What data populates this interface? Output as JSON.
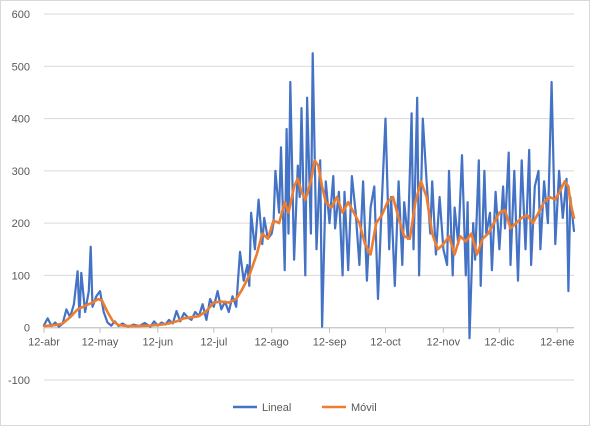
{
  "chart_data": {
    "type": "line",
    "title": "",
    "xlabel": "",
    "ylabel": "",
    "ylim": [
      -100,
      600
    ],
    "yticks": [
      -100,
      0,
      100,
      200,
      300,
      400,
      500,
      600
    ],
    "x_range": [
      "2020-04-12",
      "2021-01-21"
    ],
    "x_ticks": [
      {
        "date": "2020-04-12",
        "label": "12-abr"
      },
      {
        "date": "2020-05-12",
        "label": "12-may"
      },
      {
        "date": "2020-06-12",
        "label": "12-jun"
      },
      {
        "date": "2020-07-12",
        "label": "12-jul"
      },
      {
        "date": "2020-08-12",
        "label": "12-ago"
      },
      {
        "date": "2020-09-12",
        "label": "12-sep"
      },
      {
        "date": "2020-10-12",
        "label": "12-oct"
      },
      {
        "date": "2020-11-12",
        "label": "12-nov"
      },
      {
        "date": "2020-12-12",
        "label": "12-dic"
      },
      {
        "date": "2021-01-12",
        "label": "12-ene"
      }
    ],
    "grid": true,
    "legend_position": "bottom",
    "colors": {
      "Lineal": "#4472c4",
      "Móvil": "#ed7d31",
      "grid": "#d9d9d9",
      "text": "#595959"
    },
    "series": [
      {
        "name": "Lineal",
        "color": "#4472c4",
        "points": [
          [
            "2020-04-12",
            5
          ],
          [
            "2020-04-14",
            18
          ],
          [
            "2020-04-16",
            3
          ],
          [
            "2020-04-18",
            10
          ],
          [
            "2020-04-20",
            2
          ],
          [
            "2020-04-22",
            8
          ],
          [
            "2020-04-24",
            35
          ],
          [
            "2020-04-26",
            20
          ],
          [
            "2020-04-28",
            45
          ],
          [
            "2020-04-30",
            108
          ],
          [
            "2020-05-01",
            20
          ],
          [
            "2020-05-02",
            105
          ],
          [
            "2020-05-04",
            30
          ],
          [
            "2020-05-06",
            70
          ],
          [
            "2020-05-07",
            155
          ],
          [
            "2020-05-08",
            40
          ],
          [
            "2020-05-10",
            60
          ],
          [
            "2020-05-12",
            70
          ],
          [
            "2020-05-14",
            30
          ],
          [
            "2020-05-16",
            10
          ],
          [
            "2020-05-18",
            4
          ],
          [
            "2020-05-20",
            12
          ],
          [
            "2020-05-22",
            3
          ],
          [
            "2020-05-24",
            8
          ],
          [
            "2020-05-27",
            2
          ],
          [
            "2020-05-30",
            6
          ],
          [
            "2020-06-02",
            3
          ],
          [
            "2020-06-05",
            9
          ],
          [
            "2020-06-08",
            2
          ],
          [
            "2020-06-10",
            12
          ],
          [
            "2020-06-12",
            4
          ],
          [
            "2020-06-14",
            10
          ],
          [
            "2020-06-16",
            6
          ],
          [
            "2020-06-18",
            15
          ],
          [
            "2020-06-20",
            8
          ],
          [
            "2020-06-22",
            32
          ],
          [
            "2020-06-24",
            12
          ],
          [
            "2020-06-26",
            28
          ],
          [
            "2020-06-28",
            20
          ],
          [
            "2020-06-30",
            15
          ],
          [
            "2020-07-02",
            30
          ],
          [
            "2020-07-04",
            22
          ],
          [
            "2020-07-06",
            45
          ],
          [
            "2020-07-08",
            15
          ],
          [
            "2020-07-10",
            55
          ],
          [
            "2020-07-12",
            40
          ],
          [
            "2020-07-14",
            70
          ],
          [
            "2020-07-16",
            35
          ],
          [
            "2020-07-18",
            50
          ],
          [
            "2020-07-20",
            30
          ],
          [
            "2020-07-22",
            60
          ],
          [
            "2020-07-24",
            40
          ],
          [
            "2020-07-26",
            145
          ],
          [
            "2020-07-28",
            90
          ],
          [
            "2020-07-30",
            120
          ],
          [
            "2020-07-31",
            80
          ],
          [
            "2020-08-01",
            220
          ],
          [
            "2020-08-03",
            150
          ],
          [
            "2020-08-05",
            245
          ],
          [
            "2020-08-07",
            160
          ],
          [
            "2020-08-08",
            210
          ],
          [
            "2020-08-10",
            170
          ],
          [
            "2020-08-12",
            180
          ],
          [
            "2020-08-13",
            200
          ],
          [
            "2020-08-14",
            300
          ],
          [
            "2020-08-16",
            220
          ],
          [
            "2020-08-17",
            345
          ],
          [
            "2020-08-19",
            110
          ],
          [
            "2020-08-20",
            380
          ],
          [
            "2020-08-21",
            180
          ],
          [
            "2020-08-22",
            470
          ],
          [
            "2020-08-24",
            130
          ],
          [
            "2020-08-26",
            310
          ],
          [
            "2020-08-27",
            250
          ],
          [
            "2020-08-28",
            420
          ],
          [
            "2020-08-30",
            100
          ],
          [
            "2020-08-31",
            440
          ],
          [
            "2020-09-02",
            180
          ],
          [
            "2020-09-03",
            525
          ],
          [
            "2020-09-05",
            150
          ],
          [
            "2020-09-07",
            320
          ],
          [
            "2020-09-08",
            2
          ],
          [
            "2020-09-10",
            280
          ],
          [
            "2020-09-12",
            200
          ],
          [
            "2020-09-14",
            290
          ],
          [
            "2020-09-15",
            190
          ],
          [
            "2020-09-17",
            260
          ],
          [
            "2020-09-19",
            100
          ],
          [
            "2020-09-20",
            260
          ],
          [
            "2020-09-22",
            110
          ],
          [
            "2020-09-24",
            290
          ],
          [
            "2020-09-26",
            220
          ],
          [
            "2020-09-28",
            120
          ],
          [
            "2020-09-30",
            280
          ],
          [
            "2020-10-02",
            90
          ],
          [
            "2020-10-04",
            230
          ],
          [
            "2020-10-06",
            270
          ],
          [
            "2020-10-08",
            55
          ],
          [
            "2020-10-10",
            240
          ],
          [
            "2020-10-12",
            400
          ],
          [
            "2020-10-14",
            150
          ],
          [
            "2020-10-15",
            250
          ],
          [
            "2020-10-17",
            80
          ],
          [
            "2020-10-19",
            280
          ],
          [
            "2020-10-21",
            120
          ],
          [
            "2020-10-22",
            240
          ],
          [
            "2020-10-24",
            170
          ],
          [
            "2020-10-26",
            410
          ],
          [
            "2020-10-27",
            150
          ],
          [
            "2020-10-29",
            440
          ],
          [
            "2020-10-30",
            100
          ],
          [
            "2020-11-01",
            400
          ],
          [
            "2020-11-03",
            280
          ],
          [
            "2020-11-05",
            180
          ],
          [
            "2020-11-06",
            280
          ],
          [
            "2020-11-08",
            140
          ],
          [
            "2020-11-10",
            250
          ],
          [
            "2020-11-12",
            150
          ],
          [
            "2020-11-14",
            120
          ],
          [
            "2020-11-15",
            300
          ],
          [
            "2020-11-17",
            100
          ],
          [
            "2020-11-18",
            230
          ],
          [
            "2020-11-20",
            160
          ],
          [
            "2020-11-22",
            330
          ],
          [
            "2020-11-24",
            100
          ],
          [
            "2020-11-25",
            240
          ],
          [
            "2020-11-26",
            -20
          ],
          [
            "2020-11-28",
            200
          ],
          [
            "2020-11-29",
            130
          ],
          [
            "2020-12-01",
            320
          ],
          [
            "2020-12-02",
            80
          ],
          [
            "2020-12-04",
            300
          ],
          [
            "2020-12-05",
            180
          ],
          [
            "2020-12-07",
            220
          ],
          [
            "2020-12-08",
            110
          ],
          [
            "2020-12-10",
            260
          ],
          [
            "2020-12-12",
            150
          ],
          [
            "2020-12-14",
            270
          ],
          [
            "2020-12-15",
            190
          ],
          [
            "2020-12-17",
            335
          ],
          [
            "2020-12-18",
            120
          ],
          [
            "2020-12-20",
            300
          ],
          [
            "2020-12-22",
            90
          ],
          [
            "2020-12-24",
            320
          ],
          [
            "2020-12-26",
            150
          ],
          [
            "2020-12-28",
            340
          ],
          [
            "2020-12-29",
            120
          ],
          [
            "2020-12-31",
            270
          ],
          [
            "2021-01-02",
            300
          ],
          [
            "2021-01-03",
            150
          ],
          [
            "2021-01-05",
            280
          ],
          [
            "2021-01-07",
            200
          ],
          [
            "2021-01-09",
            470
          ],
          [
            "2021-01-11",
            160
          ],
          [
            "2021-01-13",
            300
          ],
          [
            "2021-01-15",
            210
          ],
          [
            "2021-01-17",
            285
          ],
          [
            "2021-01-18",
            70
          ],
          [
            "2021-01-19",
            250
          ],
          [
            "2021-01-21",
            185
          ]
        ]
      },
      {
        "name": "Móvil",
        "color": "#ed7d31",
        "points": [
          [
            "2020-04-12",
            3
          ],
          [
            "2020-04-18",
            5
          ],
          [
            "2020-04-22",
            8
          ],
          [
            "2020-04-26",
            20
          ],
          [
            "2020-04-30",
            35
          ],
          [
            "2020-05-04",
            42
          ],
          [
            "2020-05-08",
            48
          ],
          [
            "2020-05-11",
            55
          ],
          [
            "2020-05-13",
            52
          ],
          [
            "2020-05-16",
            30
          ],
          [
            "2020-05-19",
            12
          ],
          [
            "2020-05-22",
            5
          ],
          [
            "2020-05-27",
            3
          ],
          [
            "2020-06-01",
            3
          ],
          [
            "2020-06-08",
            4
          ],
          [
            "2020-06-14",
            6
          ],
          [
            "2020-06-18",
            8
          ],
          [
            "2020-06-22",
            12
          ],
          [
            "2020-06-26",
            18
          ],
          [
            "2020-06-30",
            20
          ],
          [
            "2020-07-04",
            22
          ],
          [
            "2020-07-08",
            32
          ],
          [
            "2020-07-12",
            48
          ],
          [
            "2020-07-16",
            50
          ],
          [
            "2020-07-20",
            48
          ],
          [
            "2020-07-24",
            55
          ],
          [
            "2020-07-27",
            72
          ],
          [
            "2020-07-31",
            100
          ],
          [
            "2020-08-04",
            140
          ],
          [
            "2020-08-07",
            180
          ],
          [
            "2020-08-10",
            170
          ],
          [
            "2020-08-13",
            205
          ],
          [
            "2020-08-16",
            200
          ],
          [
            "2020-08-19",
            240
          ],
          [
            "2020-08-21",
            220
          ],
          [
            "2020-08-24",
            270
          ],
          [
            "2020-08-26",
            285
          ],
          [
            "2020-08-28",
            260
          ],
          [
            "2020-08-30",
            245
          ],
          [
            "2020-09-02",
            280
          ],
          [
            "2020-09-04",
            320
          ],
          [
            "2020-09-06",
            310
          ],
          [
            "2020-09-08",
            270
          ],
          [
            "2020-09-10",
            240
          ],
          [
            "2020-09-13",
            230
          ],
          [
            "2020-09-16",
            250
          ],
          [
            "2020-09-19",
            220
          ],
          [
            "2020-09-22",
            240
          ],
          [
            "2020-09-25",
            220
          ],
          [
            "2020-09-28",
            200
          ],
          [
            "2020-10-01",
            160
          ],
          [
            "2020-10-04",
            140
          ],
          [
            "2020-10-07",
            200
          ],
          [
            "2020-10-10",
            215
          ],
          [
            "2020-10-13",
            240
          ],
          [
            "2020-10-16",
            250
          ],
          [
            "2020-10-19",
            210
          ],
          [
            "2020-10-22",
            175
          ],
          [
            "2020-10-25",
            170
          ],
          [
            "2020-10-28",
            240
          ],
          [
            "2020-10-31",
            280
          ],
          [
            "2020-11-03",
            250
          ],
          [
            "2020-11-06",
            180
          ],
          [
            "2020-11-09",
            150
          ],
          [
            "2020-11-12",
            160
          ],
          [
            "2020-11-15",
            175
          ],
          [
            "2020-11-18",
            140
          ],
          [
            "2020-11-21",
            175
          ],
          [
            "2020-11-24",
            165
          ],
          [
            "2020-11-27",
            180
          ],
          [
            "2020-11-30",
            140
          ],
          [
            "2020-12-03",
            170
          ],
          [
            "2020-12-06",
            180
          ],
          [
            "2020-12-09",
            200
          ],
          [
            "2020-12-12",
            220
          ],
          [
            "2020-12-15",
            225
          ],
          [
            "2020-12-18",
            190
          ],
          [
            "2020-12-21",
            200
          ],
          [
            "2020-12-24",
            210
          ],
          [
            "2020-12-27",
            215
          ],
          [
            "2020-12-30",
            200
          ],
          [
            "2021-01-02",
            220
          ],
          [
            "2021-01-05",
            240
          ],
          [
            "2021-01-08",
            250
          ],
          [
            "2021-01-11",
            245
          ],
          [
            "2021-01-14",
            265
          ],
          [
            "2021-01-16",
            280
          ],
          [
            "2021-01-18",
            270
          ],
          [
            "2021-01-19",
            240
          ],
          [
            "2021-01-21",
            210
          ]
        ]
      }
    ]
  }
}
